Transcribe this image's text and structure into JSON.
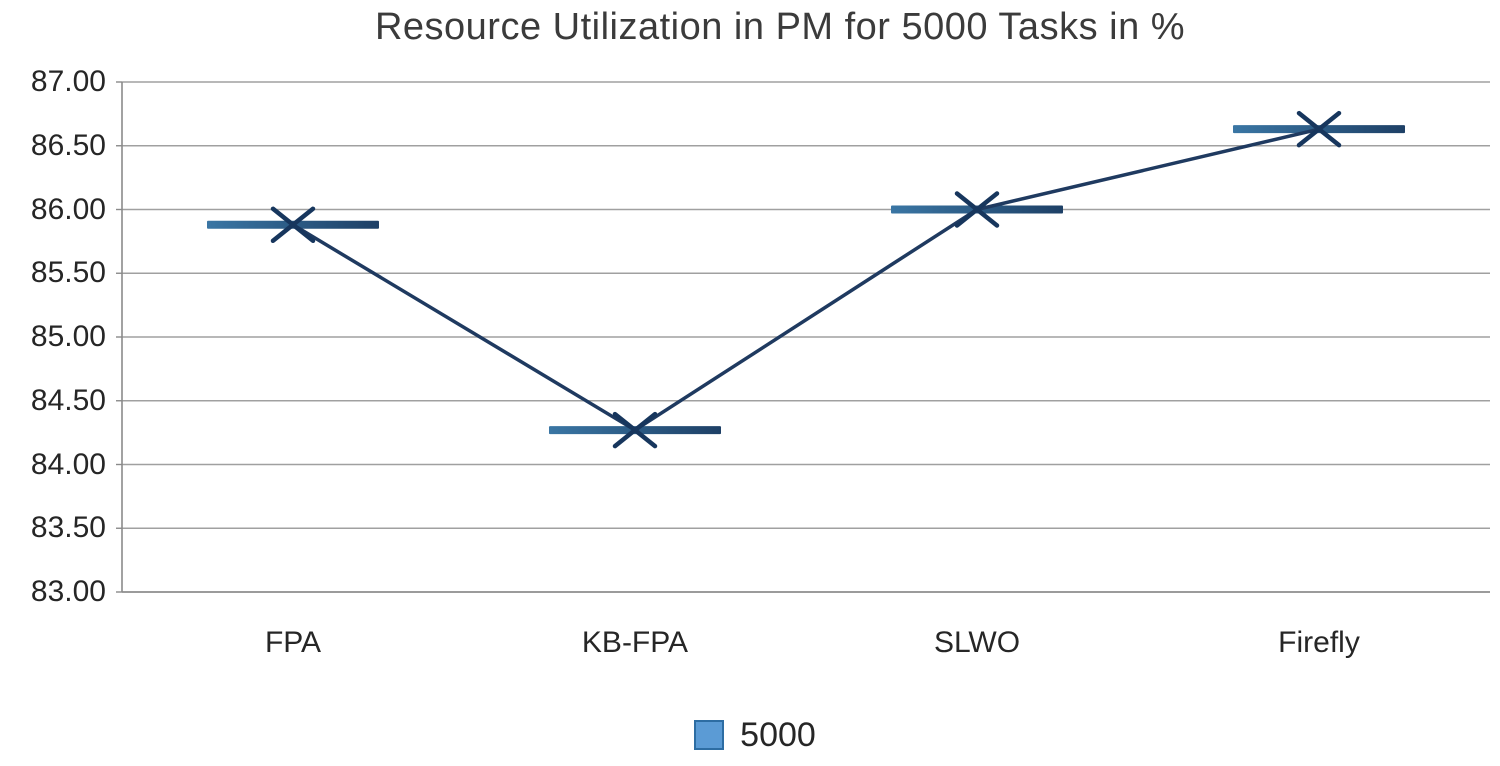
{
  "title": "Resource Utilization in PM for 5000 Tasks in %",
  "chart_data": {
    "type": "line",
    "title": "Resource Utilization in PM for 5000 Tasks in %",
    "categories": [
      "FPA",
      "KB-FPA",
      "SLWO",
      "Firefly"
    ],
    "series": [
      {
        "name": "5000",
        "values": [
          85.88,
          84.27,
          86.0,
          86.63
        ]
      }
    ],
    "xlabel": "",
    "ylabel": "",
    "ylim": [
      83.0,
      87.0
    ],
    "ytick_step": 0.5,
    "ytick_labels": [
      "87.00",
      "86.50",
      "86.00",
      "85.50",
      "85.00",
      "84.50",
      "84.00",
      "83.50",
      "83.00"
    ],
    "grid": true,
    "legend_position": "bottom",
    "marker_style": "x-with-horizontal-dash",
    "colors": {
      "line": "#1f3a60",
      "marker_x": "#17365d",
      "dash_bar_left": "#3a76a4",
      "dash_bar_right": "#1e4066",
      "legend_fill": "#5b9bd5",
      "legend_border": "#2d6da3",
      "gridline": "#a0a0a0",
      "axis": "#8a8a8a",
      "title_text": "#3b3b3b",
      "label_text": "#262626"
    }
  },
  "legend": {
    "label": "5000"
  }
}
